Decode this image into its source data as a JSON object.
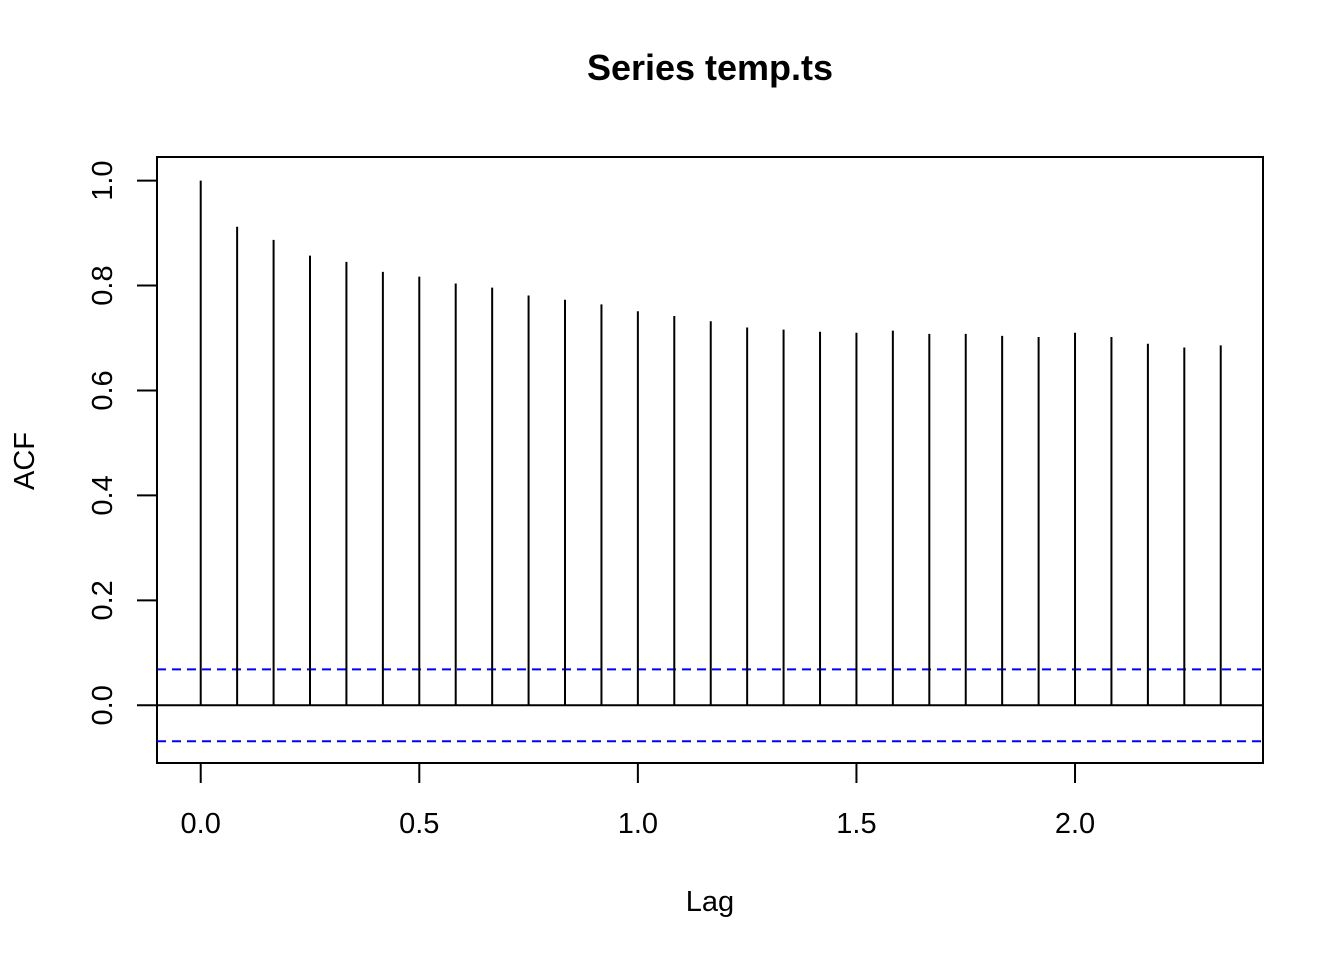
{
  "chart_data": {
    "type": "bar",
    "subtype": "acf-lollipop",
    "title": "Series  temp.ts",
    "xlabel": "Lag",
    "ylabel": "ACF",
    "xlim": [
      -0.1,
      2.43
    ],
    "ylim": [
      -0.11,
      1.045
    ],
    "x_ticks": [
      {
        "value": 0.0,
        "label": "0.0"
      },
      {
        "value": 0.5,
        "label": "0.5"
      },
      {
        "value": 1.0,
        "label": "1.0"
      },
      {
        "value": 1.5,
        "label": "1.5"
      },
      {
        "value": 2.0,
        "label": "2.0"
      }
    ],
    "y_ticks": [
      {
        "value": 0.0,
        "label": "0.0"
      },
      {
        "value": 0.2,
        "label": "0.2"
      },
      {
        "value": 0.4,
        "label": "0.4"
      },
      {
        "value": 0.6,
        "label": "0.6"
      },
      {
        "value": 0.8,
        "label": "0.8"
      },
      {
        "value": 1.0,
        "label": "1.0"
      }
    ],
    "x": [
      0.0,
      0.0833,
      0.1667,
      0.25,
      0.3333,
      0.4167,
      0.5,
      0.5833,
      0.6667,
      0.75,
      0.8333,
      0.9167,
      1.0,
      1.0833,
      1.1667,
      1.25,
      1.3333,
      1.4167,
      1.5,
      1.5833,
      1.6667,
      1.75,
      1.8333,
      1.9167,
      2.0,
      2.0833,
      2.1667,
      2.25,
      2.3333
    ],
    "values": [
      1.0,
      0.912,
      0.887,
      0.857,
      0.845,
      0.826,
      0.817,
      0.804,
      0.796,
      0.781,
      0.773,
      0.764,
      0.751,
      0.742,
      0.732,
      0.72,
      0.716,
      0.712,
      0.71,
      0.714,
      0.708,
      0.708,
      0.704,
      0.702,
      0.71,
      0.702,
      0.689,
      0.682,
      0.686
    ],
    "zero_line": 0.0,
    "confidence_bounds": [
      0.0685,
      -0.0685
    ],
    "colors": {
      "spike": "#000000",
      "confidence": "#0000ff",
      "frame": "#000000",
      "background": "#ffffff"
    },
    "grid": false,
    "legend": "none"
  }
}
